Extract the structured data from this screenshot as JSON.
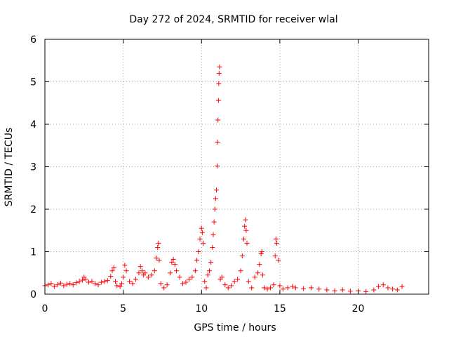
{
  "chart_data": {
    "type": "scatter",
    "title": "Day 272 of 2024, SRMTID for receiver wlal",
    "xlabel": "GPS time / hours",
    "ylabel": "SRMTID / TECUs",
    "xlim": [
      0,
      24.5
    ],
    "ylim": [
      0,
      6
    ],
    "xticks": [
      0,
      5,
      10,
      15,
      20
    ],
    "yticks": [
      0,
      1,
      2,
      3,
      4,
      5,
      6
    ],
    "xtick_labels": [
      "0",
      "5",
      "10",
      "15",
      "20"
    ],
    "ytick_labels": [
      "0",
      "1",
      "2",
      "3",
      "4",
      "5",
      "6"
    ],
    "grid": true,
    "legend": "none",
    "marker": "+",
    "series": [
      {
        "name": "SRMTID",
        "color": "#ff0000",
        "x": [
          0.0,
          0.2,
          0.4,
          0.6,
          0.8,
          1.0,
          1.2,
          1.4,
          1.6,
          1.8,
          2.0,
          2.2,
          2.4,
          2.5,
          2.6,
          2.8,
          3.0,
          3.2,
          3.4,
          3.6,
          3.8,
          4.0,
          4.2,
          4.3,
          4.4,
          4.5,
          4.6,
          4.8,
          4.9,
          5.0,
          5.1,
          5.2,
          5.4,
          5.6,
          5.8,
          6.0,
          6.1,
          6.2,
          6.3,
          6.4,
          6.6,
          6.8,
          7.0,
          7.1,
          7.2,
          7.25,
          7.3,
          7.4,
          7.6,
          7.8,
          8.0,
          8.1,
          8.2,
          8.3,
          8.4,
          8.6,
          8.8,
          9.0,
          9.2,
          9.4,
          9.6,
          9.7,
          9.8,
          9.9,
          10.0,
          10.05,
          10.1,
          10.2,
          10.3,
          10.4,
          10.5,
          10.6,
          10.7,
          10.75,
          10.8,
          10.85,
          10.9,
          10.95,
          11.0,
          11.02,
          11.05,
          11.08,
          11.1,
          11.12,
          11.15,
          11.2,
          11.3,
          11.5,
          11.7,
          11.9,
          12.1,
          12.3,
          12.5,
          12.6,
          12.7,
          12.75,
          12.8,
          12.85,
          12.9,
          13.0,
          13.2,
          13.4,
          13.6,
          13.7,
          13.8,
          13.85,
          13.9,
          14.0,
          14.2,
          14.4,
          14.6,
          14.7,
          14.75,
          14.8,
          14.9,
          15.0,
          15.2,
          15.5,
          15.8,
          16.0,
          16.5,
          17.0,
          17.5,
          18.0,
          18.5,
          19.0,
          19.5,
          20.0,
          20.5,
          21.0,
          21.3,
          21.6,
          21.9,
          22.2,
          22.5,
          22.8
        ],
        "y": [
          0.2,
          0.22,
          0.25,
          0.18,
          0.22,
          0.26,
          0.2,
          0.23,
          0.25,
          0.22,
          0.27,
          0.3,
          0.33,
          0.4,
          0.35,
          0.28,
          0.3,
          0.25,
          0.22,
          0.28,
          0.3,
          0.32,
          0.42,
          0.55,
          0.62,
          0.3,
          0.2,
          0.18,
          0.25,
          0.4,
          0.68,
          0.55,
          0.3,
          0.25,
          0.35,
          0.5,
          0.65,
          0.55,
          0.45,
          0.5,
          0.4,
          0.45,
          0.55,
          0.85,
          1.1,
          1.2,
          0.8,
          0.25,
          0.15,
          0.22,
          0.5,
          0.75,
          0.82,
          0.7,
          0.55,
          0.4,
          0.25,
          0.28,
          0.35,
          0.4,
          0.55,
          0.8,
          1.0,
          1.3,
          1.55,
          1.45,
          1.2,
          0.3,
          0.15,
          0.45,
          0.55,
          0.75,
          1.1,
          1.4,
          1.7,
          2.0,
          2.25,
          2.45,
          3.02,
          3.58,
          4.1,
          4.56,
          4.96,
          5.2,
          5.35,
          0.35,
          0.4,
          0.22,
          0.15,
          0.2,
          0.3,
          0.35,
          0.55,
          0.9,
          1.3,
          1.6,
          1.75,
          1.5,
          1.2,
          0.3,
          0.15,
          0.4,
          0.5,
          0.7,
          0.95,
          1.0,
          0.45,
          0.15,
          0.12,
          0.15,
          0.22,
          0.9,
          1.3,
          1.2,
          0.8,
          0.2,
          0.12,
          0.15,
          0.18,
          0.15,
          0.13,
          0.15,
          0.12,
          0.1,
          0.08,
          0.1,
          0.07,
          0.08,
          0.06,
          0.1,
          0.18,
          0.22,
          0.15,
          0.12,
          0.1,
          0.18
        ]
      }
    ]
  }
}
